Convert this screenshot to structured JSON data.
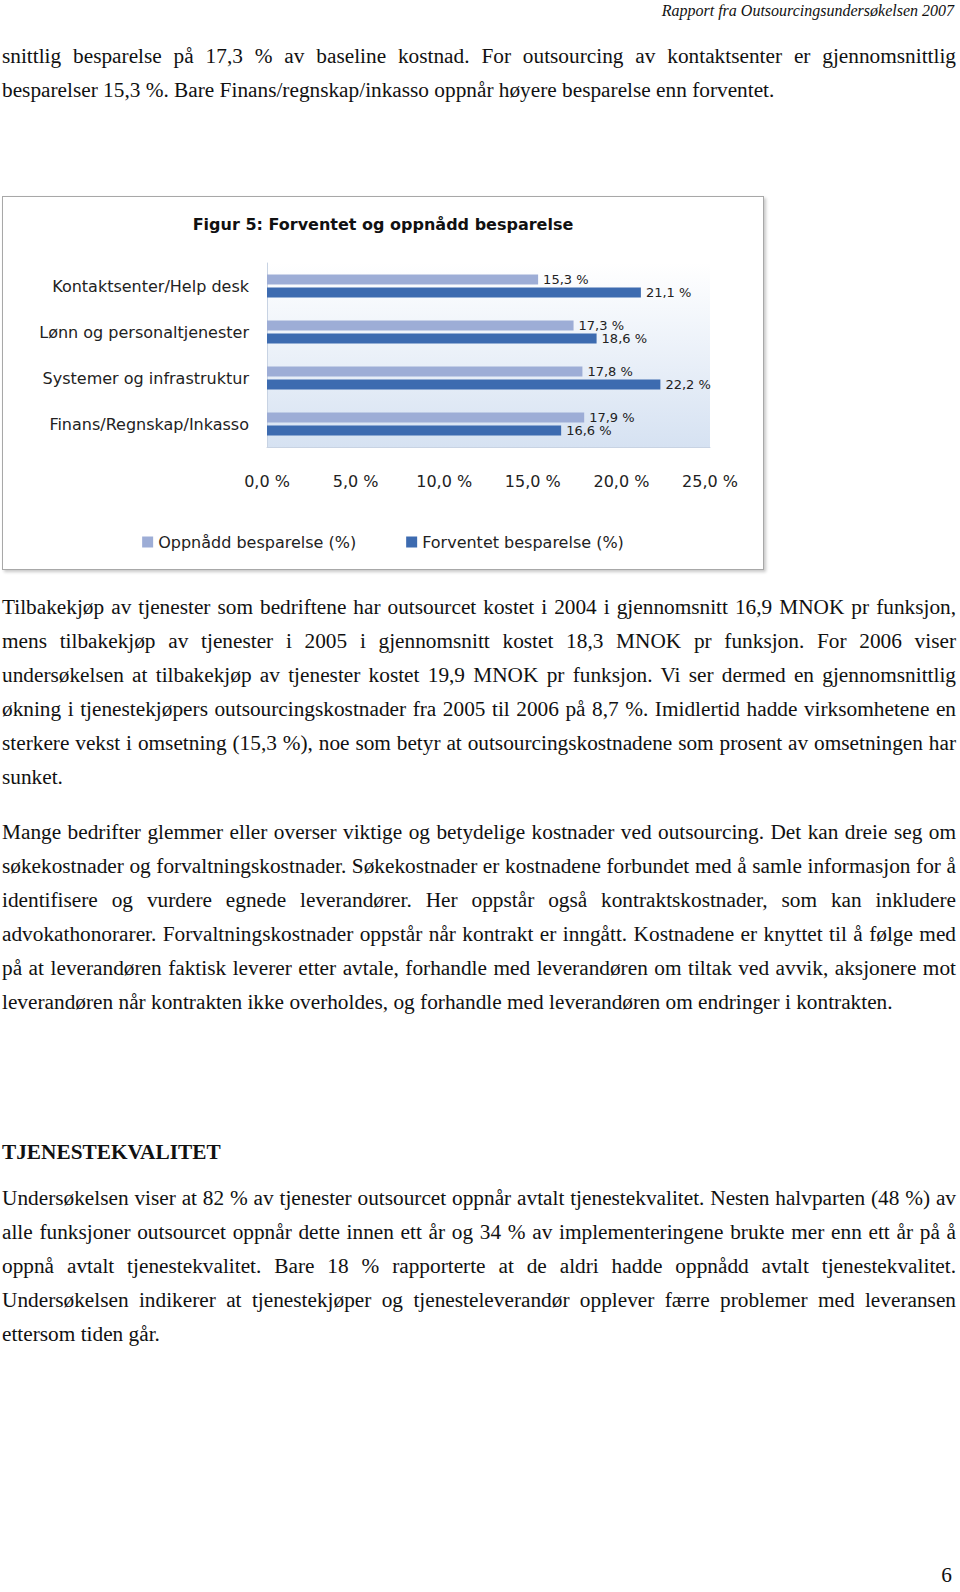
{
  "document": {
    "header": "Rapport fra Outsourcingsundersøkelsen 2007",
    "intro": "snittlig besparelse på 17,3 % av baseline kostnad. For outsourcing av kontaktsenter er gjennomsnittlig besparelser 15,3 %. Bare Finans/regnskap/inkasso oppnår høyere besparelse enn forventet.",
    "paragraphs": [
      "Tilbakekjøp av tjenester som bedriftene har outsourcet kostet i 2004 i gjennomsnitt 16,9 MNOK pr funksjon, mens tilbakekjøp av tjenester i 2005 i gjennomsnitt kostet 18,3 MNOK pr funksjon. For 2006 viser undersøkelsen at tilbakekjøp av tjenester kostet 19,9 MNOK pr funksjon. Vi ser dermed en gjennomsnittlig økning i tjenestekjøpers outsourcingskostnader fra 2005 til 2006 på 8,7 %. Imidlertid hadde virksomhetene en sterkere vekst i omsetning (15,3 %), noe som betyr at outsourcingskostnadene som prosent av omsetningen har sunket.",
      "Mange bedrifter glemmer eller overser viktige og betydelige kostnader ved outsourcing. Det kan dreie seg om søkekostnader og forvaltningskostnader. Søkekostnader er kostnadene forbundet med å samle informasjon for å identifisere og vurdere egnede leverandører. Her oppstår også kontraktskostnader, som kan inkludere advokathonorarer. Forvaltningskostnader oppstår når kontrakt er inngått. Kostnadene er knyttet til å følge med på at leverandøren faktisk leverer etter avtale, forhandle med leverandøren om tiltak ved avvik, aksjonere mot leverandøren når kontrakten ikke overholdes, og forhandle med leverandøren om endringer i kontrakten."
    ],
    "section": {
      "heading": "TJENESTEKVALITET",
      "paragraphs": [
        "Undersøkelsen viser at 82 % av tjenester outsourcet oppnår avtalt tjenestekvalitet. Nesten halvparten (48 %) av alle funksjoner outsourcet oppnår dette innen ett år og 34 % av implementeringene brukte mer enn ett år på å oppnå avtalt tjenestekvalitet. Bare 18 % rapporterte at de aldri hadde oppnådd avtalt tjenestekvalitet. Undersøkelsen indikerer at tjenestekjøper og tjenesteleverandør opplever færre problemer med leveransen ettersom tiden går."
      ]
    },
    "page_number": "6"
  },
  "chart_data": {
    "type": "bar",
    "orientation": "horizontal",
    "title": "Figur 5: Forventet og oppnådd besparelse",
    "categories": [
      "Kontaktsenter/Help desk",
      "Lønn og personaltjenester",
      "Systemer og infrastruktur",
      "Finans/Regnskap/Inkasso"
    ],
    "series": [
      {
        "name": "Oppnådd besparelse (%)",
        "color": "#9dadd6",
        "values": [
          15.3,
          17.3,
          17.8,
          17.9
        ],
        "value_labels": [
          "15,3 %",
          "17,3 %",
          "17,8 %",
          "17,9 %"
        ]
      },
      {
        "name": "Forventet besparelse (%)",
        "color": "#3d6bb0",
        "values": [
          21.1,
          18.6,
          22.2,
          16.6
        ],
        "value_labels": [
          "21,1 %",
          "18,6 %",
          "22,2 %",
          "16,6 %"
        ]
      }
    ],
    "xlim": [
      0,
      25
    ],
    "xticks": [
      {
        "value": 0,
        "label": "0,0 %"
      },
      {
        "value": 5,
        "label": "5,0 %"
      },
      {
        "value": 10,
        "label": "10,0 %"
      },
      {
        "value": 15,
        "label": "15,0 %"
      },
      {
        "value": 20,
        "label": "20,0 %"
      },
      {
        "value": 25,
        "label": "25,0 %"
      }
    ],
    "grid": false,
    "legend": "bottom",
    "data_labels": true
  }
}
